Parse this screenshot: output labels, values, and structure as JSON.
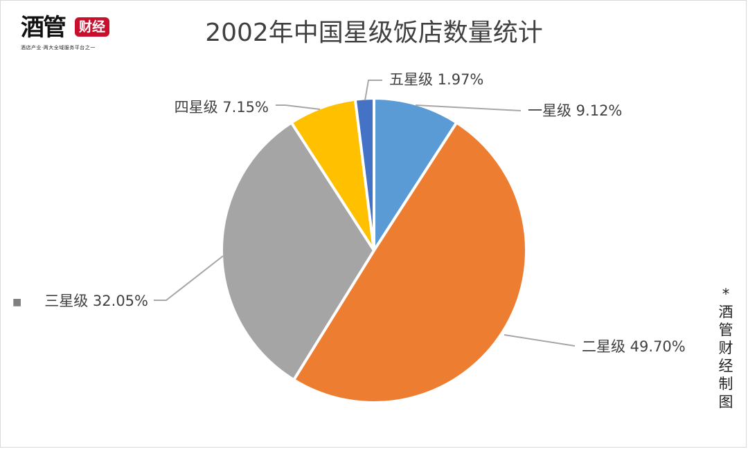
{
  "logo": {
    "main": "酒管",
    "badge": "财经",
    "tagline": "酒店产业·两大全域服务平台之一"
  },
  "colors": {
    "one_star": "#5b9bd5",
    "two_star": "#ed7d31",
    "three_star": "#a5a5a5",
    "four_star": "#ffc000",
    "five_star": "#4472c4"
  },
  "legend_marker": "■",
  "side_note": "*酒管财经制图",
  "chart_data": {
    "type": "pie",
    "title": "2002年中国星级饭店数量统计",
    "categories": [
      "一星级",
      "二星级",
      "三星级",
      "四星级",
      "五星级"
    ],
    "values": [
      9.12,
      49.7,
      32.05,
      7.15,
      1.97
    ],
    "labels": [
      "一星级 9.12%",
      "二星级 49.70%",
      "三星级 32.05%",
      "四星级 7.15%",
      "五星级 1.97%"
    ],
    "unit": "%"
  }
}
